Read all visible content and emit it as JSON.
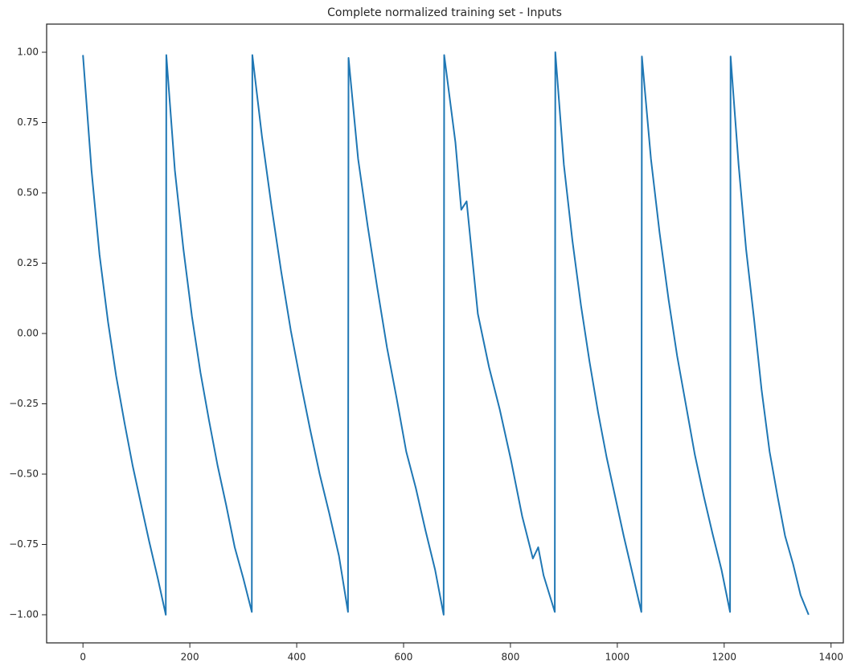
{
  "chart_data": {
    "type": "line",
    "title": "Complete normalized training set - Inputs",
    "x": [
      0,
      16,
      31,
      47,
      62,
      78,
      93,
      109,
      124,
      140,
      155,
      156,
      172,
      188,
      204,
      220,
      236,
      252,
      268,
      284,
      300,
      316,
      317,
      335,
      353,
      371,
      389,
      407,
      425,
      443,
      461,
      479,
      496,
      497,
      515,
      533,
      551,
      569,
      587,
      605,
      623,
      641,
      659,
      675,
      676,
      697,
      708,
      718,
      739,
      760,
      780,
      801,
      822,
      842,
      852,
      862,
      883,
      884,
      900,
      916,
      932,
      948,
      964,
      980,
      996,
      1012,
      1028,
      1045,
      1046,
      1063,
      1079,
      1096,
      1112,
      1129,
      1145,
      1162,
      1178,
      1195,
      1211,
      1212,
      1227,
      1241,
      1256,
      1270,
      1285,
      1300,
      1314,
      1329,
      1343,
      1358
    ],
    "values": [
      0.99,
      0.58,
      0.28,
      0.04,
      -0.15,
      -0.32,
      -0.47,
      -0.61,
      -0.74,
      -0.87,
      -1.0,
      0.99,
      0.58,
      0.3,
      0.06,
      -0.14,
      -0.31,
      -0.47,
      -0.61,
      -0.76,
      -0.87,
      -0.99,
      0.99,
      0.7,
      0.45,
      0.22,
      0.01,
      -0.17,
      -0.34,
      -0.5,
      -0.64,
      -0.79,
      -0.99,
      0.98,
      0.62,
      0.38,
      0.16,
      -0.05,
      -0.23,
      -0.42,
      -0.55,
      -0.7,
      -0.84,
      -1.0,
      0.99,
      0.68,
      0.44,
      0.47,
      0.07,
      -0.12,
      -0.27,
      -0.45,
      -0.65,
      -0.8,
      -0.76,
      -0.86,
      -0.99,
      1.0,
      0.6,
      0.33,
      0.1,
      -0.1,
      -0.28,
      -0.44,
      -0.58,
      -0.72,
      -0.85,
      -0.99,
      0.985,
      0.62,
      0.36,
      0.12,
      -0.08,
      -0.26,
      -0.43,
      -0.58,
      -0.71,
      -0.84,
      -0.99,
      0.985,
      0.6,
      0.3,
      0.05,
      -0.2,
      -0.42,
      -0.58,
      -0.72,
      -0.82,
      -0.93,
      -1.0
    ],
    "color": "#1f77b4",
    "xlim": [
      -68,
      1423
    ],
    "xticks": [
      0,
      200,
      400,
      600,
      800,
      1000,
      1200,
      1400
    ],
    "ylim": [
      -1.1,
      1.1
    ],
    "yticks": [
      {
        "value": -1,
        "label": "−1.00"
      },
      {
        "value": -0.75,
        "label": "−0.75"
      },
      {
        "value": -0.5,
        "label": "−0.50"
      },
      {
        "value": -0.25,
        "label": "−0.25"
      },
      {
        "value": 0,
        "label": "0.00"
      },
      {
        "value": 0.25,
        "label": "0.25"
      },
      {
        "value": 0.5,
        "label": "0.50"
      },
      {
        "value": 0.75,
        "label": "0.75"
      },
      {
        "value": 1,
        "label": "1.00"
      }
    ],
    "grid": false
  }
}
